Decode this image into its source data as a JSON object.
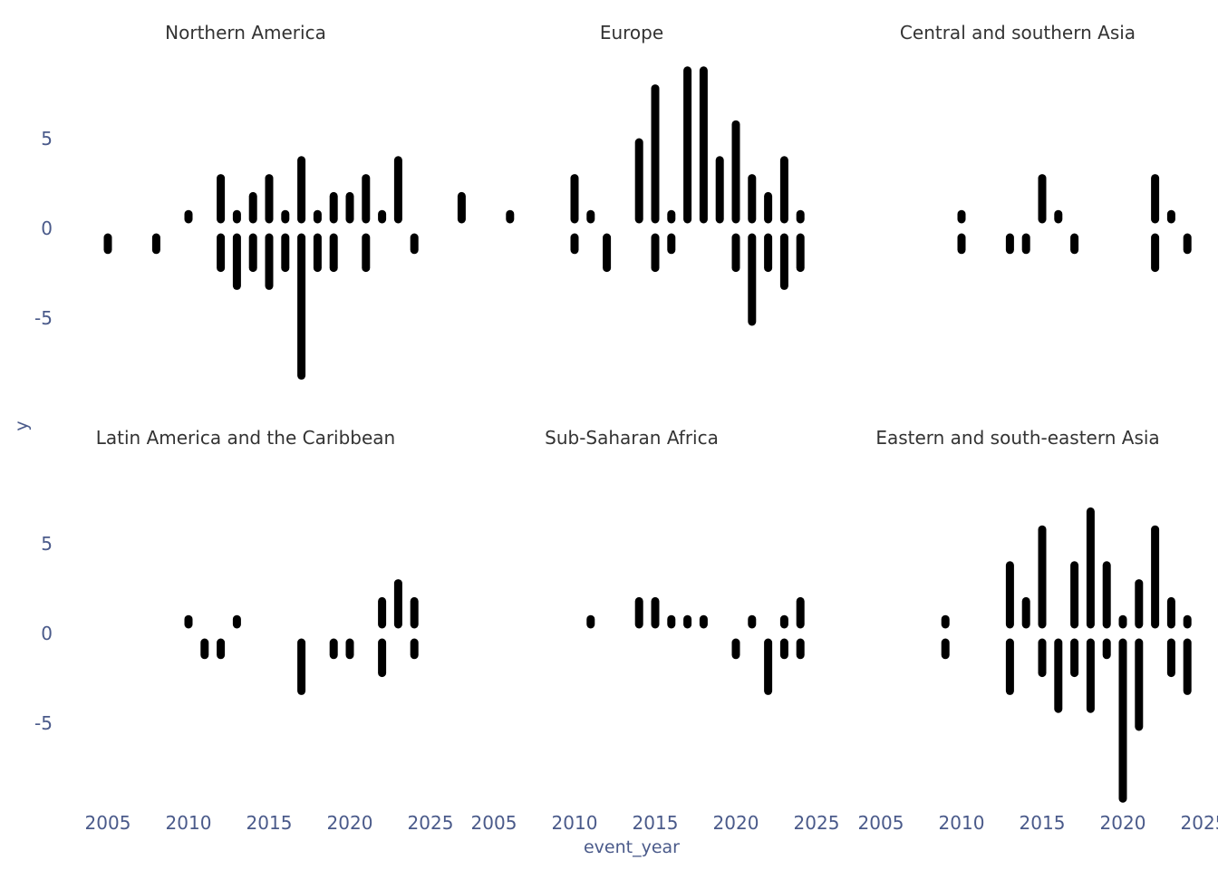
{
  "chart_data": {
    "type": "bar",
    "subtype": "faceted diverging segment plot",
    "xlabel": "event_year",
    "ylabel": "y",
    "xlim": [
      2004,
      2025
    ],
    "ylim": [
      -9.5,
      9.5
    ],
    "x_ticks": [
      2005,
      2010,
      2015,
      2020,
      2025
    ],
    "y_ticks": [
      5,
      0,
      -5
    ],
    "grid": false,
    "legend": "none",
    "colors": {
      "bars": "#000000",
      "axis_text": "#4a5a8a",
      "strip_text": "#333333"
    },
    "facets": [
      {
        "name": "Northern America",
        "positive": [
          [
            2010,
            1
          ],
          [
            2012,
            3
          ],
          [
            2013,
            1
          ],
          [
            2014,
            2
          ],
          [
            2015,
            3
          ],
          [
            2016,
            1
          ],
          [
            2017,
            4
          ],
          [
            2018,
            1
          ],
          [
            2019,
            2
          ],
          [
            2020,
            2
          ],
          [
            2021,
            3
          ],
          [
            2022,
            1
          ],
          [
            2023,
            4
          ]
        ],
        "negative": [
          [
            2005,
            1
          ],
          [
            2008,
            1
          ],
          [
            2012,
            2
          ],
          [
            2013,
            3
          ],
          [
            2014,
            2
          ],
          [
            2015,
            3
          ],
          [
            2016,
            2
          ],
          [
            2017,
            8
          ],
          [
            2018,
            2
          ],
          [
            2019,
            2
          ],
          [
            2021,
            2
          ],
          [
            2024,
            1
          ]
        ]
      },
      {
        "name": "Europe",
        "positive": [
          [
            2003,
            2
          ],
          [
            2006,
            1
          ],
          [
            2010,
            3
          ],
          [
            2011,
            1
          ],
          [
            2014,
            5
          ],
          [
            2015,
            8
          ],
          [
            2016,
            1
          ],
          [
            2017,
            9
          ],
          [
            2018,
            9
          ],
          [
            2019,
            4
          ],
          [
            2020,
            6
          ],
          [
            2021,
            3
          ],
          [
            2022,
            2
          ],
          [
            2023,
            4
          ],
          [
            2024,
            1
          ]
        ],
        "negative": [
          [
            2010,
            1
          ],
          [
            2012,
            2
          ],
          [
            2015,
            2
          ],
          [
            2016,
            1
          ],
          [
            2020,
            2
          ],
          [
            2021,
            5
          ],
          [
            2022,
            2
          ],
          [
            2023,
            3
          ],
          [
            2024,
            2
          ]
        ]
      },
      {
        "name": "Central and southern Asia",
        "positive": [
          [
            2010,
            1
          ],
          [
            2015,
            3
          ],
          [
            2016,
            1
          ],
          [
            2022,
            3
          ],
          [
            2023,
            1
          ]
        ],
        "negative": [
          [
            2010,
            1
          ],
          [
            2013,
            1
          ],
          [
            2014,
            1
          ],
          [
            2017,
            1
          ],
          [
            2022,
            2
          ],
          [
            2024,
            1
          ]
        ]
      },
      {
        "name": "Latin America and the Caribbean",
        "positive": [
          [
            2010,
            1
          ],
          [
            2013,
            1
          ],
          [
            2022,
            2
          ],
          [
            2023,
            3
          ],
          [
            2024,
            2
          ]
        ],
        "negative": [
          [
            2011,
            1
          ],
          [
            2012,
            1
          ],
          [
            2017,
            3
          ],
          [
            2019,
            1
          ],
          [
            2020,
            1
          ],
          [
            2022,
            2
          ],
          [
            2024,
            1
          ]
        ]
      },
      {
        "name": "Sub-Saharan Africa",
        "positive": [
          [
            2011,
            1
          ],
          [
            2014,
            2
          ],
          [
            2015,
            2
          ],
          [
            2016,
            1
          ],
          [
            2017,
            1
          ],
          [
            2018,
            1
          ],
          [
            2021,
            1
          ],
          [
            2023,
            1
          ],
          [
            2024,
            2
          ]
        ],
        "negative": [
          [
            2020,
            1
          ],
          [
            2022,
            3
          ],
          [
            2023,
            1
          ],
          [
            2024,
            1
          ]
        ]
      },
      {
        "name": "Eastern and south-eastern Asia",
        "positive": [
          [
            2009,
            1
          ],
          [
            2013,
            4
          ],
          [
            2014,
            2
          ],
          [
            2015,
            6
          ],
          [
            2017,
            4
          ],
          [
            2018,
            7
          ],
          [
            2019,
            4
          ],
          [
            2020,
            1
          ],
          [
            2021,
            3
          ],
          [
            2022,
            6
          ],
          [
            2023,
            2
          ],
          [
            2024,
            1
          ]
        ],
        "negative": [
          [
            2009,
            1
          ],
          [
            2013,
            3
          ],
          [
            2015,
            2
          ],
          [
            2016,
            4
          ],
          [
            2017,
            2
          ],
          [
            2018,
            4
          ],
          [
            2019,
            1
          ],
          [
            2020,
            9
          ],
          [
            2021,
            5
          ],
          [
            2023,
            2
          ],
          [
            2024,
            3
          ]
        ]
      }
    ]
  }
}
